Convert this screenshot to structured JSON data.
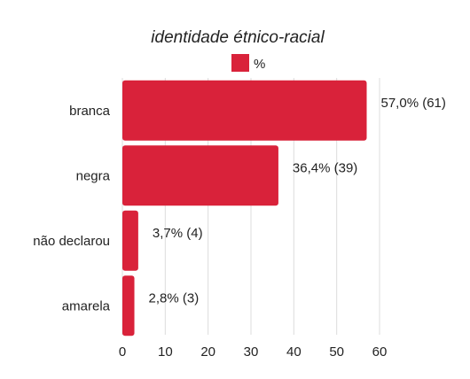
{
  "chart_data": {
    "type": "bar",
    "orientation": "horizontal",
    "title": "identidade étnico-racial",
    "legend": {
      "label": "%",
      "placement": "top"
    },
    "categories": [
      "branca",
      "negra",
      "não declarou",
      "amarela"
    ],
    "series": [
      {
        "name": "%",
        "values": [
          57.0,
          36.4,
          3.7,
          2.8
        ],
        "counts": [
          61,
          39,
          4,
          3
        ],
        "labels": [
          "57,0% (61)",
          "36,4% (39)",
          "3,7% (4)",
          "2,8% (3)"
        ]
      }
    ],
    "xlim": [
      0,
      60
    ],
    "xticks": [
      0,
      10,
      20,
      30,
      40,
      50,
      60
    ],
    "grid": true,
    "colors": {
      "bar": "#d9223a",
      "grid": "#dcdcdc",
      "text": "#222222"
    }
  }
}
